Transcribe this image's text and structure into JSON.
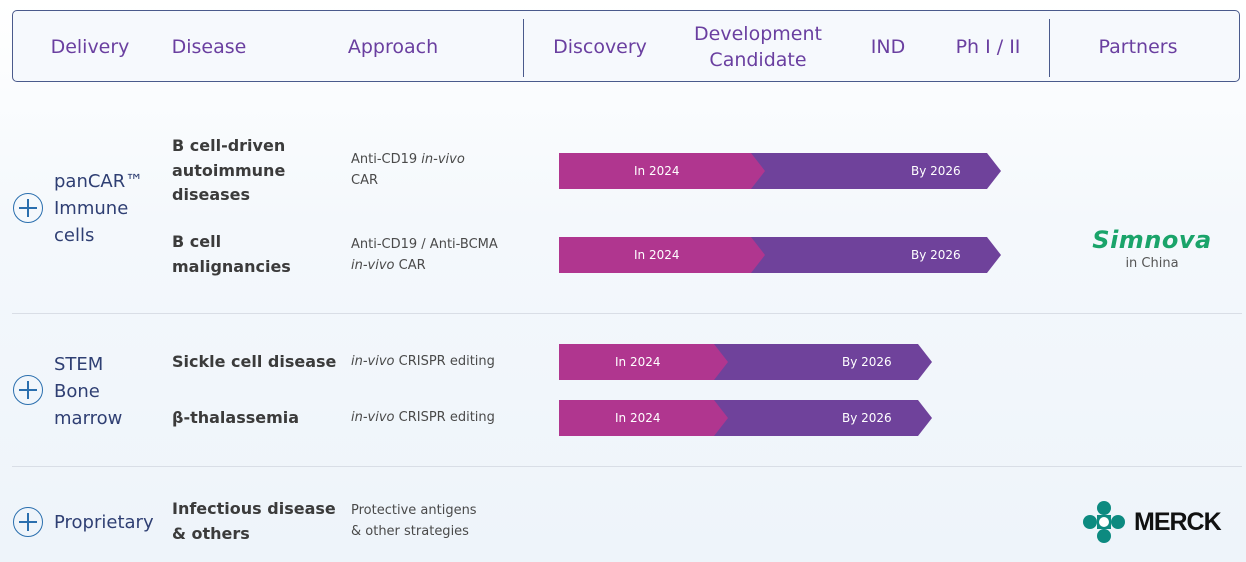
{
  "header": {
    "delivery": "Delivery",
    "disease": "Disease",
    "approach": "Approach",
    "discovery": "Discovery",
    "development_line1": "Development",
    "development_line2": "Candidate",
    "ind": "IND",
    "ph": "Ph I / II",
    "partners": "Partners"
  },
  "colors": {
    "magenta": "#b0368f",
    "purple": "#6f429b",
    "header_text": "#6a3fa0"
  },
  "groups": [
    {
      "delivery": [
        "panCAR™",
        "Immune",
        "cells"
      ],
      "rows": [
        {
          "disease": [
            "B cell-driven",
            "autoimmune",
            "diseases"
          ],
          "approach_l1_pre": "Anti-CD19 ",
          "approach_l1_ital": "in-vivo",
          "approach_l2": "CAR",
          "start_label": "In 2024",
          "end_label": "By 2026",
          "progress": 0.8
        },
        {
          "disease": [
            "B cell",
            "malignancies"
          ],
          "approach_l1_pre": "Anti-CD19 / Anti-BCMA",
          "approach_l2_ital": "in-vivo",
          "approach_l2": " CAR",
          "start_label": "In 2024",
          "end_label": "By 2026",
          "progress": 0.8
        }
      ],
      "partner": {
        "name": "Simnova",
        "sub": "in China"
      }
    },
    {
      "delivery": [
        "STEM",
        "Bone",
        "marrow"
      ],
      "rows": [
        {
          "disease": [
            "Sickle cell disease"
          ],
          "approach_ital": "in-vivo",
          "approach_rest": " CRISPR editing",
          "start_label": "In 2024",
          "end_label": "By 2026",
          "progress": 0.6
        },
        {
          "disease": [
            "β-thalassemia"
          ],
          "approach_ital": "in-vivo",
          "approach_rest": " CRISPR editing",
          "start_label": "In 2024",
          "end_label": "By 2026",
          "progress": 0.6
        }
      ]
    },
    {
      "delivery": [
        "Proprietary"
      ],
      "rows": [
        {
          "disease": [
            "Infectious disease",
            "& others"
          ],
          "approach_l1": "Protective antigens",
          "approach_l2": "& other strategies"
        }
      ],
      "partner": {
        "name": "MERCK"
      }
    }
  ]
}
